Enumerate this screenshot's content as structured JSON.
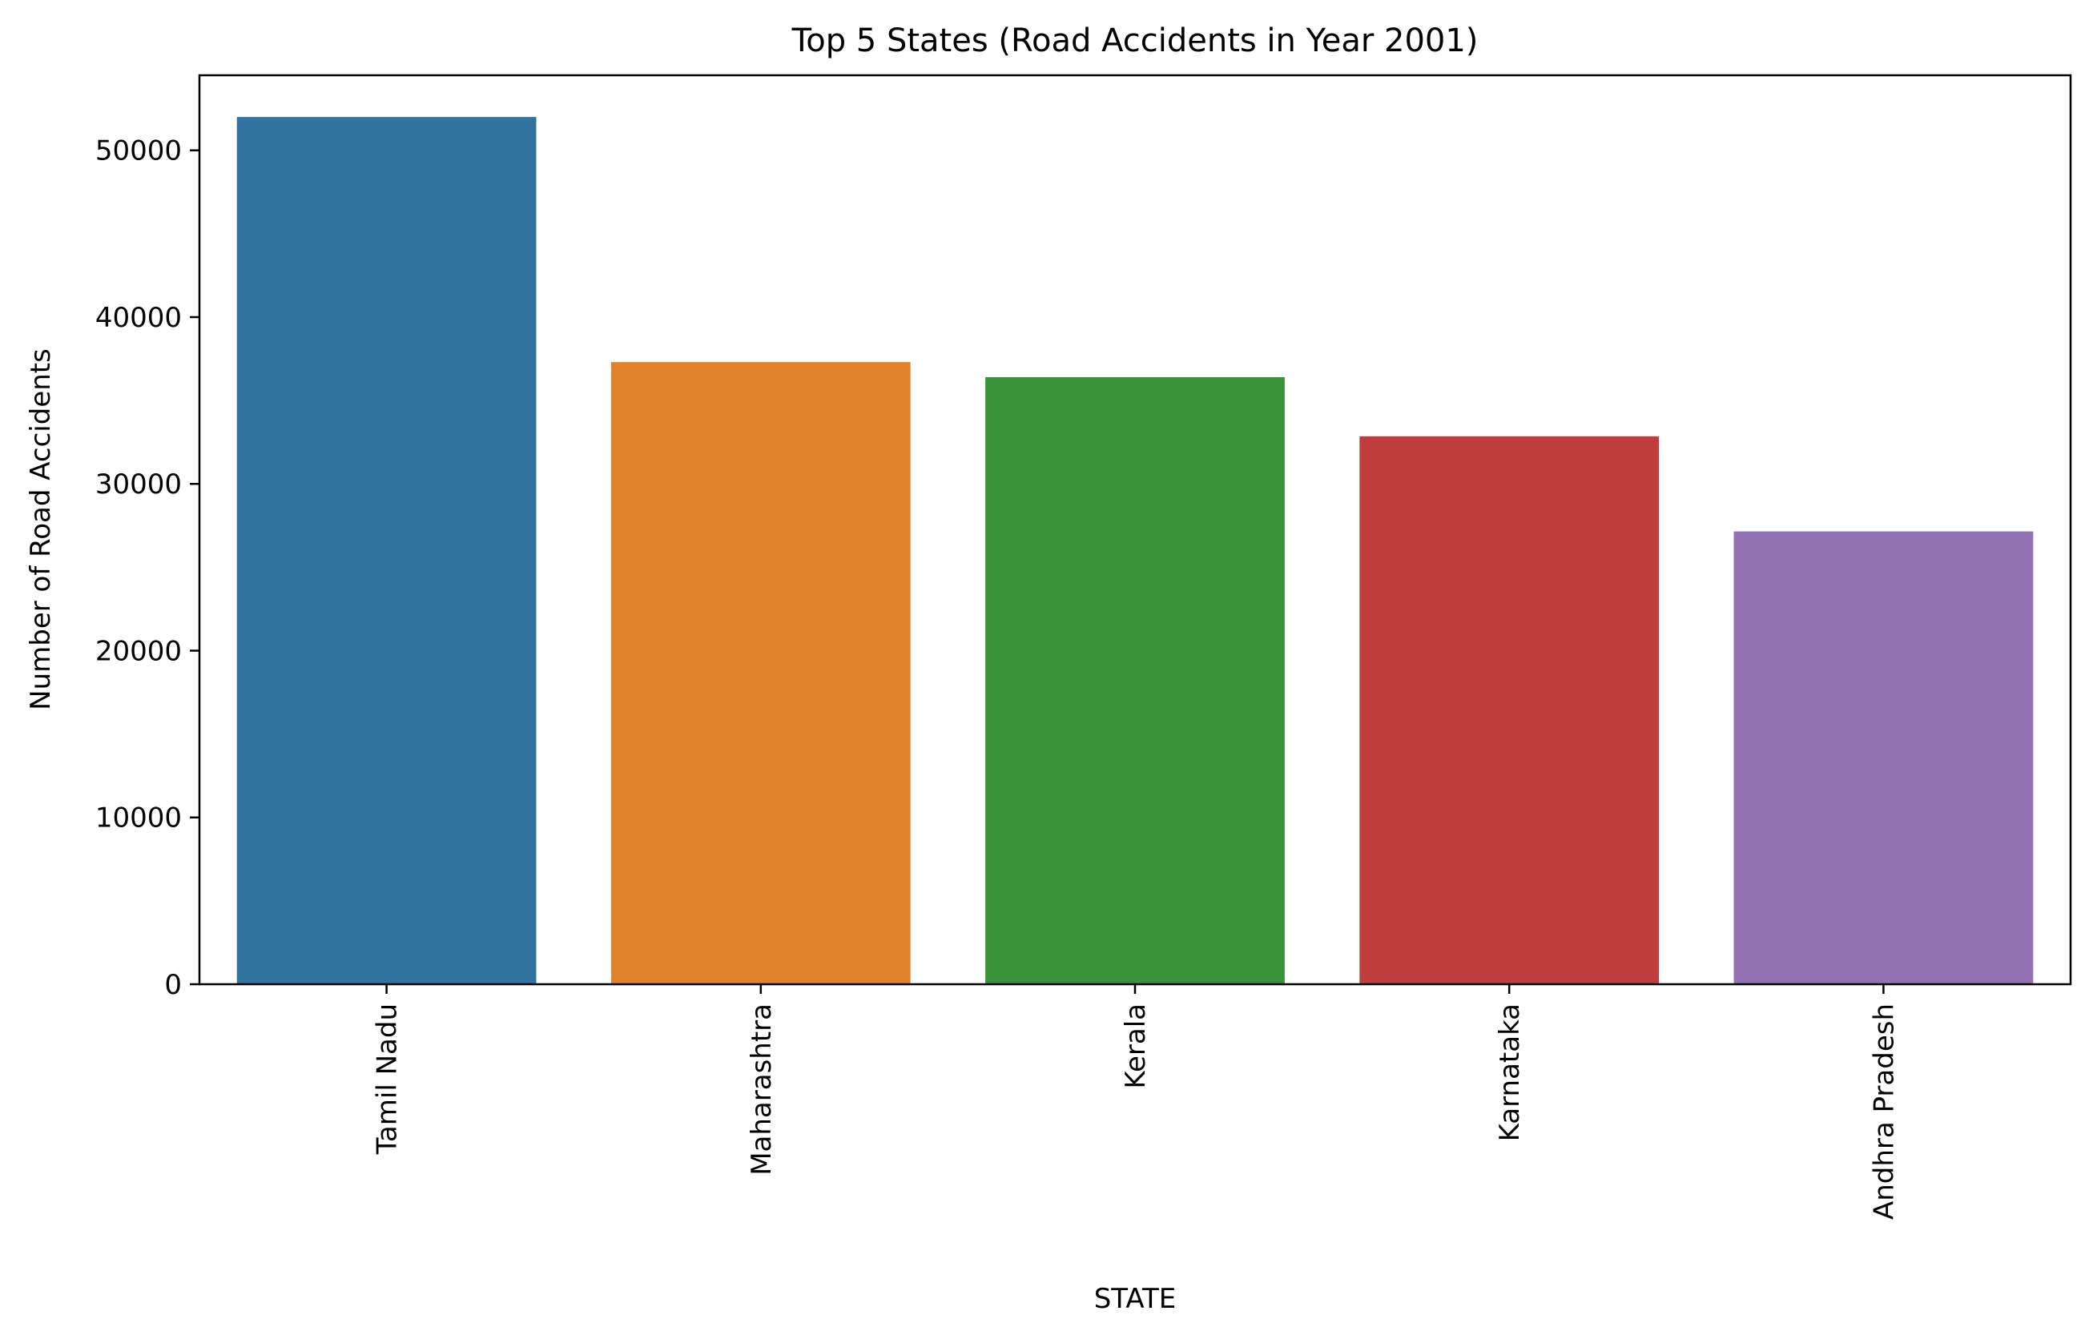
{
  "chart_data": {
    "type": "bar",
    "title": "Top 5 States (Road Accidents in Year 2001)",
    "xlabel": "STATE",
    "ylabel": "Number of Road Accidents",
    "categories": [
      "Tamil Nadu",
      "Maharashtra",
      "Kerala",
      "Karnataka",
      "Andhra Pradesh"
    ],
    "values": [
      52000,
      37300,
      36400,
      32850,
      27150
    ],
    "colors": [
      "#3274a1",
      "#e1812c",
      "#3a923a",
      "#c03d3e",
      "#9372b2"
    ],
    "ylim": [
      0,
      54500
    ],
    "yticks": [
      0,
      10000,
      20000,
      30000,
      40000,
      50000
    ],
    "ytick_labels": [
      "0",
      "10000",
      "20000",
      "30000",
      "40000",
      "50000"
    ],
    "grid": false,
    "legend": "none"
  }
}
